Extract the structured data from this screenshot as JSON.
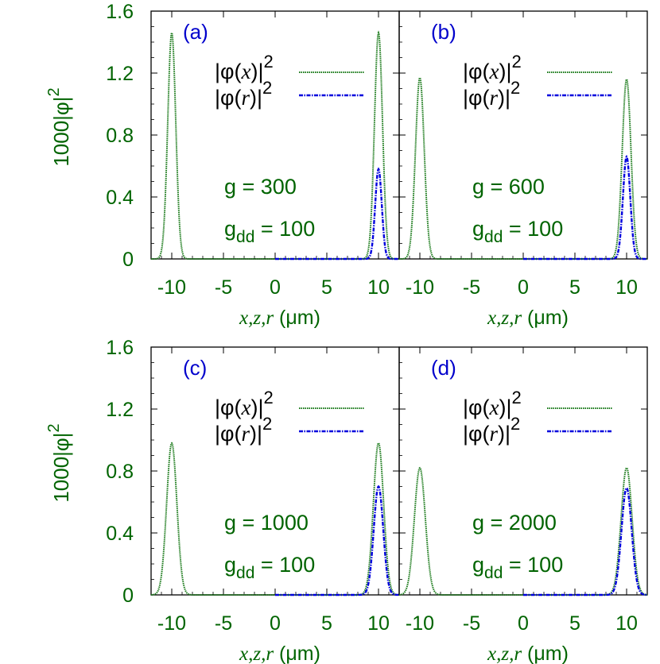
{
  "colors": {
    "green": "#006400",
    "blue": "#0000cc",
    "axis": "#000000",
    "green_curve": "#1a7a1a",
    "blue_curve": "#0000dd"
  },
  "chart_data": [
    {
      "type": "line",
      "panel_label": "(a)",
      "xlabel": "x,z,r (μm)",
      "ylabel": "1000|φ|²",
      "xlim": [
        -12,
        12
      ],
      "ylim": [
        0,
        1.6
      ],
      "xticks": [
        -10,
        -5,
        0,
        5,
        10
      ],
      "yticks": [
        0,
        0.4,
        0.8,
        1.2,
        1.6
      ],
      "annotations": {
        "g": "g = 300",
        "gdd_prefix": "g",
        "gdd_sub": "dd",
        "gdd_suffix": " = 100"
      },
      "series": [
        {
          "name": "|φ(x)|²",
          "style": "dotted",
          "color": "green",
          "peaks": [
            {
              "center": -10,
              "height": 1.46,
              "width": 0.55
            },
            {
              "center": 10,
              "height": 1.46,
              "width": 0.55
            }
          ],
          "x_range": [
            -12,
            12
          ]
        },
        {
          "name": "|φ(r)|²",
          "style": "dash-dot",
          "color": "blue",
          "peaks": [
            {
              "center": 10,
              "height": 0.58,
              "width": 0.45
            }
          ],
          "x_range": [
            0,
            12
          ]
        }
      ]
    },
    {
      "type": "line",
      "panel_label": "(b)",
      "xlabel": "x,z,r (μm)",
      "ylabel": "",
      "xlim": [
        -12,
        12
      ],
      "ylim": [
        0,
        1.6
      ],
      "xticks": [
        -10,
        -5,
        0,
        5,
        10
      ],
      "yticks": [
        0,
        0.4,
        0.8,
        1.2,
        1.6
      ],
      "annotations": {
        "g": "g = 600",
        "gdd_prefix": "g",
        "gdd_sub": "dd",
        "gdd_suffix": " = 100"
      },
      "series": [
        {
          "name": "|φ(x)|²",
          "style": "dotted",
          "color": "green",
          "peaks": [
            {
              "center": -10,
              "height": 1.17,
              "width": 0.6
            },
            {
              "center": 10,
              "height": 1.16,
              "width": 0.6
            }
          ],
          "x_range": [
            -12,
            12
          ]
        },
        {
          "name": "|φ(r)|²",
          "style": "dash-dot",
          "color": "blue",
          "peaks": [
            {
              "center": 10,
              "height": 0.66,
              "width": 0.5
            }
          ],
          "x_range": [
            0,
            12
          ]
        }
      ]
    },
    {
      "type": "line",
      "panel_label": "(c)",
      "xlabel": "x,z,r (μm)",
      "ylabel": "1000|φ|²",
      "xlim": [
        -12,
        12
      ],
      "ylim": [
        0,
        1.6
      ],
      "xticks": [
        -10,
        -5,
        0,
        5,
        10
      ],
      "yticks": [
        0,
        0.4,
        0.8,
        1.2,
        1.6
      ],
      "annotations": {
        "g": "g = 1000",
        "gdd_prefix": "g",
        "gdd_sub": "dd",
        "gdd_suffix": " = 100"
      },
      "series": [
        {
          "name": "|φ(x)|²",
          "style": "dotted",
          "color": "green",
          "peaks": [
            {
              "center": -10,
              "height": 0.98,
              "width": 0.7
            },
            {
              "center": 10,
              "height": 0.98,
              "width": 0.7
            }
          ],
          "x_range": [
            -12,
            12
          ]
        },
        {
          "name": "|φ(r)|²",
          "style": "dash-dot",
          "color": "blue",
          "peaks": [
            {
              "center": 10,
              "height": 0.7,
              "width": 0.65
            }
          ],
          "x_range": [
            0,
            12
          ]
        }
      ]
    },
    {
      "type": "line",
      "panel_label": "(d)",
      "xlabel": "x,z,r (μm)",
      "ylabel": "",
      "xlim": [
        -12,
        12
      ],
      "ylim": [
        0,
        1.6
      ],
      "xticks": [
        -10,
        -5,
        0,
        5,
        10
      ],
      "yticks": [
        0,
        0.4,
        0.8,
        1.2,
        1.6
      ],
      "annotations": {
        "g": "g = 2000",
        "gdd_prefix": "g",
        "gdd_sub": "dd",
        "gdd_suffix": " = 100"
      },
      "series": [
        {
          "name": "|φ(x)|²",
          "style": "dotted",
          "color": "green",
          "peaks": [
            {
              "center": -10,
              "height": 0.82,
              "width": 0.75
            },
            {
              "center": 10,
              "height": 0.82,
              "width": 0.75
            }
          ],
          "x_range": [
            -12,
            12
          ]
        },
        {
          "name": "|φ(r)|²",
          "style": "dash-dot",
          "color": "blue",
          "peaks": [
            {
              "center": 10,
              "height": 0.69,
              "width": 0.7
            }
          ],
          "x_range": [
            0,
            12
          ]
        }
      ]
    }
  ],
  "legend": {
    "phi_x_prefix": "|φ(",
    "phi_x_var": "x",
    "phi_x_suffix": ")|",
    "phi_r_prefix": "|φ(",
    "phi_r_var": "r",
    "phi_r_suffix": ")|",
    "sup": "2"
  },
  "ylabel_text": {
    "prefix": "1000|φ|",
    "sup": "2"
  },
  "xlabel_text": {
    "vars": "x,z,r",
    "unit": " (μm)"
  }
}
